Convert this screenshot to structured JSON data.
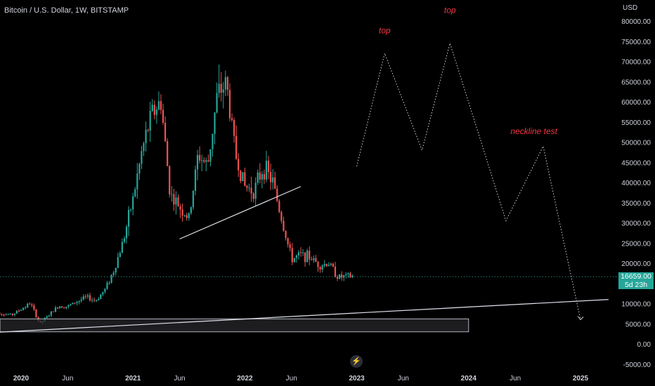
{
  "header": {
    "title": "Bitcoin / U.S. Dollar, 1W, BITSTAMP"
  },
  "axis": {
    "currency": "USD"
  },
  "price_tag": {
    "price": "16659.00",
    "countdown": "5d 23h"
  },
  "colors": {
    "up": "#26a69a",
    "down": "#ef5350",
    "annotation": "#f23645",
    "text": "#d1d4dc",
    "background": "#000000"
  },
  "icon": "lightning-icon",
  "chart_data": {
    "type": "candlestick",
    "title": "Bitcoin / U.S. Dollar, 1W, BITSTAMP",
    "y_unit": "USD",
    "ylim": [
      -6000,
      84000
    ],
    "y_ticks": [
      80000,
      75000,
      70000,
      65000,
      60000,
      55000,
      50000,
      45000,
      40000,
      35000,
      30000,
      25000,
      20000,
      15000,
      10000,
      5000,
      0,
      -5000
    ],
    "y_tick_labels": [
      "80000.00",
      "75000.00",
      "70000.00",
      "65000.00",
      "60000.00",
      "55000.00",
      "50000.00",
      "45000.00",
      "40000.00",
      "35000.00",
      "30000.00",
      "25000.00",
      "20000.00",
      "15000.00",
      "10000.00",
      "5000.00",
      "0.00",
      "-5000.00"
    ],
    "x_ticks": [
      {
        "label": "2020",
        "date": "2020-01"
      },
      {
        "label": "Jun",
        "date": "2020-06"
      },
      {
        "label": "2021",
        "date": "2021-01"
      },
      {
        "label": "Jun",
        "date": "2021-06"
      },
      {
        "label": "2022",
        "date": "2022-01"
      },
      {
        "label": "Jun",
        "date": "2022-06"
      },
      {
        "label": "2023",
        "date": "2023-01"
      },
      {
        "label": "Jun",
        "date": "2023-06"
      },
      {
        "label": "2024",
        "date": "2024-01"
      },
      {
        "label": "Jun",
        "date": "2024-06"
      },
      {
        "label": "2025",
        "date": "2025-01"
      }
    ],
    "price_path": [
      [
        "2019-10",
        8300
      ],
      [
        "2019-11",
        7400
      ],
      [
        "2019-12",
        7200
      ],
      [
        "2020-01",
        8600
      ],
      [
        "2020-02",
        10100
      ],
      [
        "2020-03",
        5000
      ],
      [
        "2020-04",
        7200
      ],
      [
        "2020-05",
        9400
      ],
      [
        "2020-06",
        9300
      ],
      [
        "2020-07",
        10500
      ],
      [
        "2020-08",
        11600
      ],
      [
        "2020-09",
        10700
      ],
      [
        "2020-10",
        13500
      ],
      [
        "2020-11",
        18500
      ],
      [
        "2020-12",
        26000
      ],
      [
        "2021-01",
        36000
      ],
      [
        "2021-02",
        48000
      ],
      [
        "2021-03",
        57000
      ],
      [
        "2021-04",
        60000
      ],
      [
        "2021-05",
        37000
      ],
      [
        "2021-06",
        34000
      ],
      [
        "2021-07",
        31000
      ],
      [
        "2021-08",
        47000
      ],
      [
        "2021-09",
        44000
      ],
      [
        "2021-10",
        61000
      ],
      [
        "2021-11",
        65000
      ],
      [
        "2021-12",
        47000
      ],
      [
        "2022-01",
        39000
      ],
      [
        "2022-02",
        38000
      ],
      [
        "2022-03",
        44000
      ],
      [
        "2022-04",
        40000
      ],
      [
        "2022-05",
        30500
      ],
      [
        "2022-06",
        21000
      ],
      [
        "2022-07",
        22000
      ],
      [
        "2022-08",
        21500
      ],
      [
        "2022-09",
        19500
      ],
      [
        "2022-10",
        20000
      ],
      [
        "2022-11",
        16500
      ],
      [
        "2022-12",
        16700
      ]
    ],
    "current_price": 16659,
    "annotations": [
      {
        "text": "top",
        "date": "2023-04",
        "price": 77000
      },
      {
        "text": "top",
        "date": "2023-11",
        "price": 82000
      },
      {
        "text": "neckline test",
        "date": "2024-08",
        "price": 52000
      }
    ],
    "projection": [
      [
        "2023-01",
        44000
      ],
      [
        "2023-04",
        72000
      ],
      [
        "2023-08",
        48000
      ],
      [
        "2023-11",
        74500
      ],
      [
        "2024-05",
        30500
      ],
      [
        "2024-09",
        49000
      ],
      [
        "2025-01",
        6000
      ]
    ],
    "trendlines": [
      {
        "from": [
          "2021-06",
          26000
        ],
        "to": [
          "2022-07",
          39000
        ]
      },
      {
        "from": [
          "2019-09",
          2700
        ],
        "to": [
          "2025-04",
          11000
        ]
      }
    ],
    "support_zone": {
      "from": "2019-09",
      "to": "2024-01",
      "low": 3000,
      "high": 6200
    }
  }
}
